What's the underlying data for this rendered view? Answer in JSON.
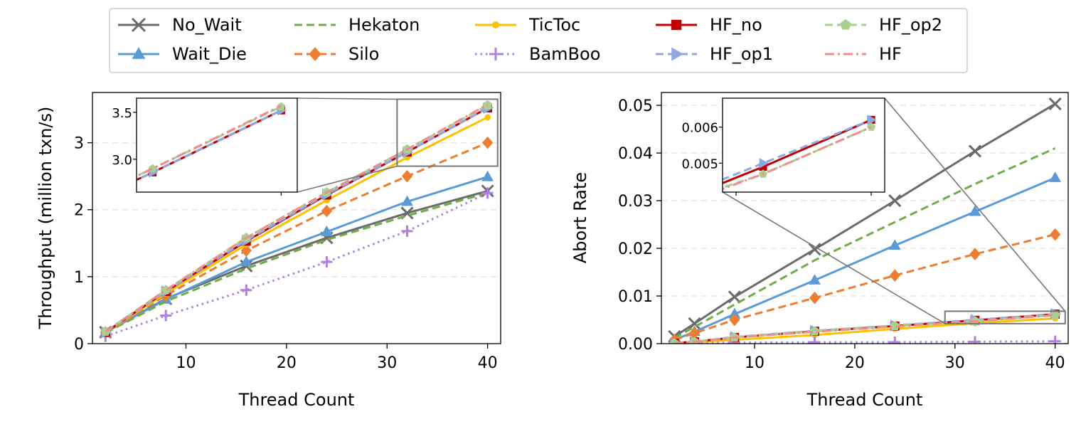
{
  "legend": {
    "placement": "top-center",
    "entries": [
      {
        "name": "No_Wait",
        "color": "#6b6b6b",
        "dash": "solid",
        "marker": "x"
      },
      {
        "name": "Wait_Die",
        "color": "#5b9bd5",
        "dash": "solid",
        "marker": "triangle"
      },
      {
        "name": "Hekaton",
        "color": "#70ad47",
        "dash": "dashed",
        "marker": "none"
      },
      {
        "name": "Silo",
        "color": "#ed7d31",
        "dash": "dashed",
        "marker": "diamond"
      },
      {
        "name": "TicToc",
        "color": "#ffc000",
        "dash": "solid",
        "marker": "dot"
      },
      {
        "name": "BamBoo",
        "color": "#b07fdf",
        "dash": "dotted",
        "marker": "plus"
      },
      {
        "name": "HF_no",
        "color": "#c00000",
        "dash": "solid",
        "marker": "square"
      },
      {
        "name": "HF_op1",
        "color": "#8fa8e0",
        "dash": "dashed",
        "marker": "triangle-right"
      },
      {
        "name": "HF_op2",
        "color": "#a9d18e",
        "dash": "dashed",
        "marker": "pentagon"
      },
      {
        "name": "HF",
        "color": "#f08c8c",
        "dash": "dashdot",
        "marker": "none"
      }
    ]
  },
  "chart_data": [
    {
      "type": "line",
      "title": "",
      "xlabel": "Thread Count",
      "ylabel": "Throughput (million txn/s)",
      "xlim": [
        0.7,
        41.3
      ],
      "ylim": [
        0,
        3.75
      ],
      "xticks": [
        10,
        20,
        30,
        40
      ],
      "yticks": [
        0,
        1,
        2,
        3
      ],
      "ytick_labels": [
        "0",
        "1",
        "2",
        "3"
      ],
      "grid": "horizontal-dashed",
      "x": [
        2,
        8,
        16,
        24,
        32,
        40
      ],
      "series": [
        {
          "name": "No_Wait",
          "values": [
            0.17,
            0.67,
            1.16,
            1.58,
            1.95,
            2.28
          ]
        },
        {
          "name": "Wait_Die",
          "values": [
            0.17,
            0.66,
            1.22,
            1.67,
            2.12,
            2.49
          ]
        },
        {
          "name": "Hekaton",
          "values": [
            0.16,
            0.63,
            1.12,
            1.55,
            1.91,
            2.25
          ]
        },
        {
          "name": "Silo",
          "values": [
            0.17,
            0.72,
            1.39,
            1.98,
            2.5,
            3.0
          ]
        },
        {
          "name": "TicToc",
          "values": [
            0.17,
            0.75,
            1.48,
            2.14,
            2.78,
            3.38
          ]
        },
        {
          "name": "BamBoo",
          "values": [
            0.11,
            0.42,
            0.8,
            1.22,
            1.68,
            2.25
          ]
        },
        {
          "name": "HF_no",
          "values": [
            0.17,
            0.78,
            1.53,
            2.22,
            2.86,
            3.52
          ]
        },
        {
          "name": "HF_op1",
          "values": [
            0.17,
            0.78,
            1.54,
            2.23,
            2.86,
            3.52
          ]
        },
        {
          "name": "HF_op2",
          "values": [
            0.18,
            0.8,
            1.58,
            2.26,
            2.9,
            3.56
          ]
        },
        {
          "name": "HF",
          "values": [
            0.18,
            0.8,
            1.58,
            2.26,
            2.9,
            3.57
          ]
        }
      ],
      "inset": {
        "xlim": [
          31,
          41
        ],
        "ylim": [
          2.65,
          3.65
        ],
        "yticks": [
          3.0,
          3.5
        ],
        "ytick_labels": [
          "3.0",
          "3.5"
        ],
        "series_shown": [
          "HF_no",
          "HF_op1",
          "HF_op2",
          "HF"
        ]
      }
    },
    {
      "type": "line",
      "title": "",
      "xlabel": "Thread Count",
      "ylabel": "Abort Rate",
      "xlim": [
        0.7,
        41.3
      ],
      "ylim": [
        0,
        0.0527
      ],
      "xticks": [
        10,
        20,
        30,
        40
      ],
      "yticks": [
        0,
        0.01,
        0.02,
        0.03,
        0.04,
        0.05
      ],
      "ytick_labels": [
        "0.00",
        "0.01",
        "0.02",
        "0.03",
        "0.04",
        "0.05"
      ],
      "grid": "horizontal-dashed",
      "x": [
        2,
        4,
        8,
        16,
        24,
        32,
        40
      ],
      "series": [
        {
          "name": "No_Wait",
          "values": [
            0.0015,
            0.0042,
            0.0098,
            0.0198,
            0.03,
            0.0404,
            0.0503
          ]
        },
        {
          "name": "Wait_Die",
          "values": [
            0.0008,
            0.0025,
            0.0062,
            0.0133,
            0.0206,
            0.0277,
            0.0348
          ]
        },
        {
          "name": "Hekaton",
          "values": [
            0.0012,
            0.0035,
            0.0082,
            0.0175,
            0.0255,
            0.0335,
            0.041
          ]
        },
        {
          "name": "Silo",
          "values": [
            0.0008,
            0.0022,
            0.005,
            0.0096,
            0.0143,
            0.0188,
            0.0229
          ]
        },
        {
          "name": "TicToc",
          "values": [
            0.0001,
            0.0003,
            0.0008,
            0.0018,
            0.0031,
            0.0043,
            0.0053
          ]
        },
        {
          "name": "BamBoo",
          "values": [
            0.0,
            0.0001,
            0.0002,
            0.0003,
            0.0003,
            0.0004,
            0.0005
          ]
        },
        {
          "name": "HF_no",
          "values": [
            0.0001,
            0.0004,
            0.0013,
            0.0026,
            0.0037,
            0.0049,
            0.0062
          ]
        },
        {
          "name": "HF_op1",
          "values": [
            0.0001,
            0.0004,
            0.0014,
            0.0027,
            0.0038,
            0.005,
            0.0062
          ]
        },
        {
          "name": "HF_op2",
          "values": [
            0.0001,
            0.0004,
            0.0013,
            0.0026,
            0.0037,
            0.0047,
            0.006
          ]
        },
        {
          "name": "HF",
          "values": [
            0.0001,
            0.0004,
            0.0013,
            0.0025,
            0.0036,
            0.0047,
            0.006
          ]
        }
      ],
      "inset": {
        "xlim": [
          29,
          41
        ],
        "ylim": [
          0.0042,
          0.0068
        ],
        "yticks": [
          0.005,
          0.006
        ],
        "ytick_labels": [
          "0.005",
          "0.006"
        ],
        "series_shown": [
          "HF_no",
          "HF_op1",
          "HF_op2",
          "HF"
        ]
      }
    }
  ]
}
